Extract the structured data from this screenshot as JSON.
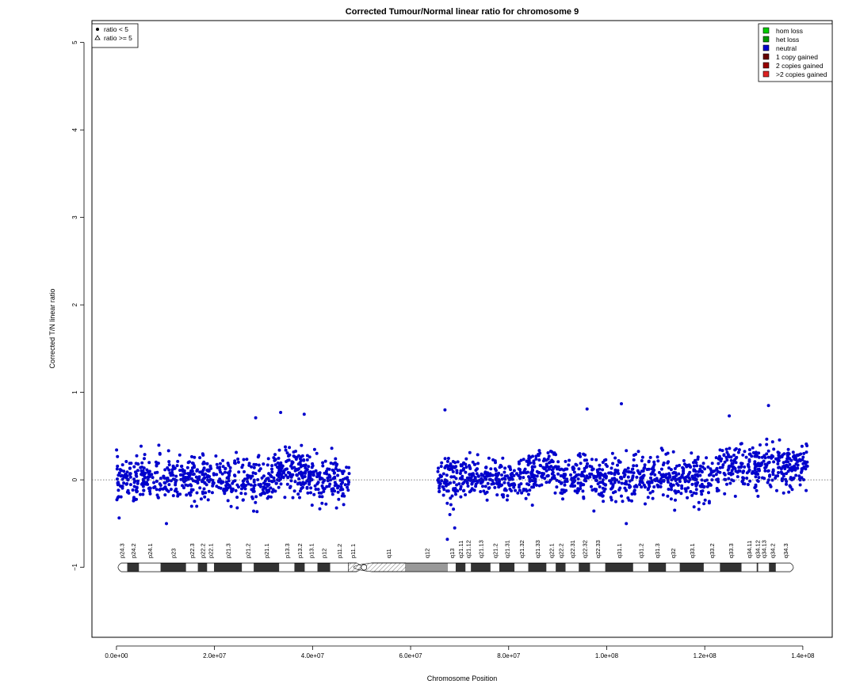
{
  "chart_data": {
    "type": "scatter",
    "title": "Corrected Tumour/Normal linear ratio for chromosome  9",
    "xlabel": "Chromosome Position",
    "ylabel": "Corrected T/N linear ratio",
    "xlim": [
      -5000000,
      146000000
    ],
    "ylim": [
      -1.8,
      5.25
    ],
    "x_ticks": [
      0,
      20000000,
      40000000,
      60000000,
      80000000,
      100000000,
      120000000,
      140000000
    ],
    "x_tick_labels": [
      "0.0e+00",
      "2.0e+07",
      "4.0e+07",
      "6.0e+07",
      "8.0e+07",
      "1.0e+08",
      "1.2e+08",
      "1.4e+08"
    ],
    "y_ticks": [
      -1,
      0,
      1,
      2,
      3,
      4,
      5
    ],
    "y_tick_labels": [
      "−1",
      "0",
      "1",
      "2",
      "3",
      "4",
      "5"
    ],
    "reference_line_y": 0,
    "point_color": "#0000CC",
    "segments": [
      {
        "x_start": 0,
        "x_end": 47500000,
        "median": 0.0,
        "spread": 0.33
      },
      {
        "x_start": 65500000,
        "x_end": 141000000,
        "median": 0.02,
        "spread": 0.33
      }
    ],
    "elevated_regions": [
      {
        "x_start": 32000000,
        "x_end": 39000000,
        "median": 0.1
      },
      {
        "x_start": 85000000,
        "x_end": 90000000,
        "median": 0.08
      },
      {
        "x_start": 123000000,
        "x_end": 141000000,
        "median": 0.12
      }
    ],
    "outliers": [
      {
        "x": 33500000,
        "y": 0.77
      },
      {
        "x": 38300000,
        "y": 0.75
      },
      {
        "x": 28400000,
        "y": 0.71
      },
      {
        "x": 67000000,
        "y": 0.8
      },
      {
        "x": 103000000,
        "y": 0.87
      },
      {
        "x": 133000000,
        "y": 0.85
      },
      {
        "x": 125000000,
        "y": 0.73
      },
      {
        "x": 96000000,
        "y": 0.81
      },
      {
        "x": 67500000,
        "y": -0.68
      },
      {
        "x": 69000000,
        "y": -0.55
      },
      {
        "x": 10200000,
        "y": -0.5
      },
      {
        "x": 104000000,
        "y": -0.5
      }
    ],
    "point_legend": {
      "placement": "top-left",
      "entries": [
        {
          "symbol": "dot",
          "label": "ratio < 5"
        },
        {
          "symbol": "triangle",
          "label": "ratio >= 5"
        }
      ]
    },
    "color_legend": {
      "placement": "top-right",
      "entries": [
        {
          "label": "hom loss",
          "color": "#00CC00"
        },
        {
          "label": "het loss",
          "color": "#009900"
        },
        {
          "label": "neutral",
          "color": "#0000CC"
        },
        {
          "label": "1 copy gained",
          "color": "#660000"
        },
        {
          "label": "2 copies gained",
          "color": "#990000"
        },
        {
          "label": ">2 copies gained",
          "color": "#DD2222"
        }
      ]
    },
    "ideogram": {
      "y": -1,
      "centromere": 50500000,
      "bands": [
        {
          "name": "p24.3",
          "start": 0,
          "end": 2200000,
          "stain": "white"
        },
        {
          "name": "p24.2",
          "start": 2200000,
          "end": 4600000,
          "stain": "dark"
        },
        {
          "name": "p24.1",
          "start": 4600000,
          "end": 9000000,
          "stain": "white"
        },
        {
          "name": "p23",
          "start": 9000000,
          "end": 14200000,
          "stain": "dark"
        },
        {
          "name": "p22.3",
          "start": 14200000,
          "end": 16600000,
          "stain": "white"
        },
        {
          "name": "p22.2",
          "start": 16600000,
          "end": 18500000,
          "stain": "dark"
        },
        {
          "name": "p22.1",
          "start": 18500000,
          "end": 19900000,
          "stain": "white"
        },
        {
          "name": "p21.3",
          "start": 19900000,
          "end": 25600000,
          "stain": "dark"
        },
        {
          "name": "p21.2",
          "start": 25600000,
          "end": 28000000,
          "stain": "white"
        },
        {
          "name": "p21.1",
          "start": 28000000,
          "end": 33200000,
          "stain": "dark"
        },
        {
          "name": "p13.3",
          "start": 33200000,
          "end": 36300000,
          "stain": "white"
        },
        {
          "name": "p13.2",
          "start": 36300000,
          "end": 38400000,
          "stain": "dark"
        },
        {
          "name": "p13.1",
          "start": 38400000,
          "end": 41000000,
          "stain": "white"
        },
        {
          "name": "p12",
          "start": 41000000,
          "end": 43600000,
          "stain": "dark"
        },
        {
          "name": "p11.2",
          "start": 43600000,
          "end": 47300000,
          "stain": "white"
        },
        {
          "name": "p11.1",
          "start": 47300000,
          "end": 49000000,
          "stain": "hatch"
        },
        {
          "name": "q11",
          "start": 52000000,
          "end": 59000000,
          "stain": "hatch"
        },
        {
          "name": "q12",
          "start": 59000000,
          "end": 67600000,
          "stain": "gray"
        },
        {
          "name": "q13",
          "start": 67600000,
          "end": 69200000,
          "stain": "white"
        },
        {
          "name": "q21.11",
          "start": 69200000,
          "end": 71200000,
          "stain": "dark"
        },
        {
          "name": "q21.12",
          "start": 71200000,
          "end": 72300000,
          "stain": "white"
        },
        {
          "name": "q21.13",
          "start": 72300000,
          "end": 76300000,
          "stain": "dark"
        },
        {
          "name": "q21.2",
          "start": 76300000,
          "end": 78100000,
          "stain": "white"
        },
        {
          "name": "q21.31",
          "start": 78100000,
          "end": 81200000,
          "stain": "dark"
        },
        {
          "name": "q21.32",
          "start": 81200000,
          "end": 84000000,
          "stain": "white"
        },
        {
          "name": "q21.33",
          "start": 84000000,
          "end": 87700000,
          "stain": "dark"
        },
        {
          "name": "q22.1",
          "start": 87700000,
          "end": 89600000,
          "stain": "white"
        },
        {
          "name": "q22.2",
          "start": 89600000,
          "end": 91600000,
          "stain": "dark"
        },
        {
          "name": "q22.31",
          "start": 91600000,
          "end": 94300000,
          "stain": "white"
        },
        {
          "name": "q22.32",
          "start": 94300000,
          "end": 96600000,
          "stain": "dark"
        },
        {
          "name": "q22.33",
          "start": 96600000,
          "end": 99700000,
          "stain": "white"
        },
        {
          "name": "q31.1",
          "start": 99700000,
          "end": 105400000,
          "stain": "dark"
        },
        {
          "name": "q31.2",
          "start": 105400000,
          "end": 108500000,
          "stain": "white"
        },
        {
          "name": "q31.3",
          "start": 108500000,
          "end": 112100000,
          "stain": "dark"
        },
        {
          "name": "q32",
          "start": 112100000,
          "end": 114900000,
          "stain": "white"
        },
        {
          "name": "q33.1",
          "start": 114900000,
          "end": 119800000,
          "stain": "dark"
        },
        {
          "name": "q33.2",
          "start": 119800000,
          "end": 123100000,
          "stain": "white"
        },
        {
          "name": "q33.3",
          "start": 123100000,
          "end": 127500000,
          "stain": "dark"
        },
        {
          "name": "q34.11",
          "start": 127500000,
          "end": 130600000,
          "stain": "white"
        },
        {
          "name": "q34.12",
          "start": 130600000,
          "end": 130900000,
          "stain": "dark"
        },
        {
          "name": "q34.13",
          "start": 130900000,
          "end": 133100000,
          "stain": "white"
        },
        {
          "name": "q34.2",
          "start": 133100000,
          "end": 134500000,
          "stain": "dark"
        },
        {
          "name": "q34.3",
          "start": 134500000,
          "end": 138400000,
          "stain": "white"
        }
      ]
    }
  }
}
